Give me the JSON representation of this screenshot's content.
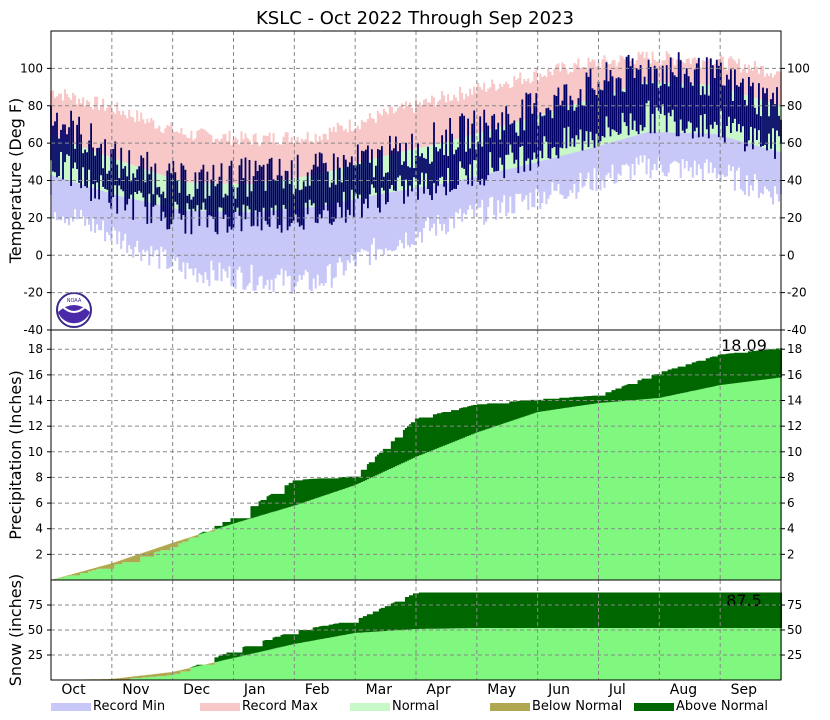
{
  "title": "KSLC - Oct 2022 Through Sep 2023",
  "colors": {
    "record_min": "#c8c8f8",
    "record_max": "#f8c8c8",
    "normal": "#c8f8c8",
    "below_normal": "#b0a850",
    "above_normal": "#006600",
    "normal_fill": "#80f880",
    "observed": "#000066"
  },
  "months": [
    "Oct",
    "Nov",
    "Dec",
    "Jan",
    "Feb",
    "Mar",
    "Apr",
    "May",
    "Jun",
    "Jul",
    "Aug",
    "Sep"
  ],
  "legend": [
    "Record Min",
    "Record Max",
    "Normal",
    "Below Normal",
    "Above Normal"
  ],
  "chart_data": [
    {
      "type": "area",
      "panel": "temperature",
      "ylabel": "Temperature (Deg F)",
      "ylim": [
        -40,
        120
      ],
      "yticks": [
        -40,
        -20,
        0,
        20,
        40,
        60,
        80,
        100
      ],
      "x": [
        "Oct",
        "Nov",
        "Dec",
        "Jan",
        "Feb",
        "Mar",
        "Apr",
        "May",
        "Jun",
        "Jul",
        "Aug",
        "Sep"
      ],
      "series": [
        {
          "name": "Record Max",
          "values": [
            88,
            78,
            65,
            62,
            64,
            75,
            85,
            94,
            102,
            106,
            104,
            98
          ]
        },
        {
          "name": "Normal high",
          "values": [
            64,
            51,
            39,
            38,
            43,
            53,
            61,
            71,
            82,
            93,
            91,
            80
          ]
        },
        {
          "name": "Normal low",
          "values": [
            43,
            32,
            24,
            23,
            26,
            33,
            39,
            47,
            56,
            66,
            65,
            55
          ]
        },
        {
          "name": "Record Min",
          "values": [
            26,
            10,
            -8,
            -12,
            -15,
            5,
            18,
            28,
            38,
            48,
            45,
            32
          ]
        },
        {
          "name": "Observed high",
          "values": [
            76,
            50,
            38,
            42,
            44,
            52,
            63,
            74,
            88,
            100,
            95,
            80
          ]
        },
        {
          "name": "Observed low",
          "values": [
            50,
            30,
            20,
            20,
            22,
            32,
            40,
            52,
            62,
            74,
            70,
            58
          ]
        }
      ],
      "grid": true
    },
    {
      "type": "area",
      "panel": "precipitation",
      "ylabel": "Precipitation (Inches)",
      "ylim": [
        0,
        19.5
      ],
      "yticks": [
        2,
        4,
        6,
        8,
        10,
        12,
        14,
        16,
        18
      ],
      "annotation": "18.09",
      "x": [
        "Oct",
        "Nov",
        "Dec",
        "Jan",
        "Feb",
        "Mar",
        "Apr",
        "May",
        "Jun",
        "Jul",
        "Aug",
        "Sep",
        "Oct"
      ],
      "series": [
        {
          "name": "Normal",
          "values": [
            0,
            1.3,
            2.9,
            4.4,
            5.8,
            7.4,
            9.6,
            11.5,
            13.1,
            13.8,
            14.2,
            15.2,
            15.8
          ]
        },
        {
          "name": "Observed",
          "values": [
            0,
            1.1,
            2.6,
            4.9,
            7.8,
            8.1,
            12.6,
            13.7,
            14.1,
            14.4,
            16.2,
            17.6,
            18.09
          ]
        }
      ],
      "grid": true
    },
    {
      "type": "area",
      "panel": "snow",
      "ylabel": "Snow (inches)",
      "ylim": [
        0,
        100
      ],
      "yticks": [
        25,
        50,
        75
      ],
      "annotation": "87.5",
      "x": [
        "Oct",
        "Nov",
        "Dec",
        "Jan",
        "Feb",
        "Mar",
        "Apr",
        "May",
        "Jun",
        "Jul",
        "Aug",
        "Sep",
        "Oct"
      ],
      "series": [
        {
          "name": "Normal",
          "values": [
            0,
            1,
            8,
            22,
            36,
            47,
            51,
            52,
            52,
            52,
            52,
            52,
            52
          ]
        },
        {
          "name": "Observed",
          "values": [
            0,
            0,
            5,
            30,
            49,
            60,
            87.5,
            87.5,
            87.5,
            87.5,
            87.5,
            87.5,
            87.5
          ]
        }
      ],
      "grid": true
    }
  ]
}
